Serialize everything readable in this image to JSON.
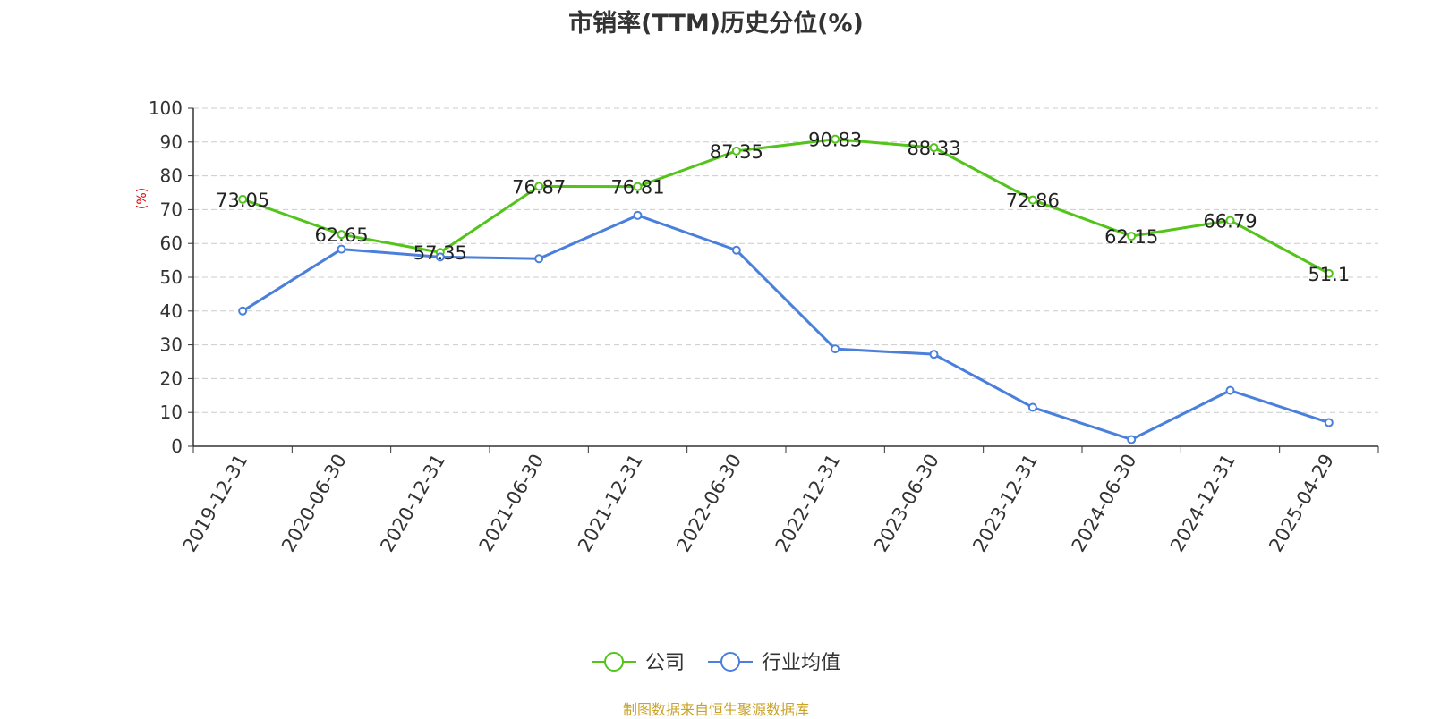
{
  "chart_data": {
    "type": "line",
    "title": "市销率(TTM)历史分位(%)",
    "ylabel": "(%)",
    "xlabel": "",
    "ylim": [
      0,
      100
    ],
    "yticks": [
      0,
      10,
      20,
      30,
      40,
      50,
      60,
      70,
      80,
      90,
      100
    ],
    "grid": true,
    "legend_position": "bottom",
    "categories": [
      "2019-12-31",
      "2020-06-30",
      "2020-12-31",
      "2021-06-30",
      "2021-12-31",
      "2022-06-30",
      "2022-12-31",
      "2023-06-30",
      "2023-12-31",
      "2024-06-30",
      "2024-12-31",
      "2025-04-29"
    ],
    "series": [
      {
        "name": "公司",
        "color": "#52c41a",
        "values": [
          73.05,
          62.65,
          57.35,
          76.87,
          76.81,
          87.35,
          90.83,
          88.33,
          72.86,
          62.15,
          66.79,
          51.1
        ],
        "labels": [
          "73.05",
          "62.65",
          "57.35",
          "76.87",
          "76.81",
          "87.35",
          "90.83",
          "88.33",
          "72.86",
          "62.15",
          "66.79",
          "51.1"
        ]
      },
      {
        "name": "行业均值",
        "color": "#4a7fdb",
        "values": [
          40,
          58.3,
          56,
          55.5,
          68.3,
          58,
          28.8,
          27.2,
          11.5,
          2,
          16.5,
          7
        ]
      }
    ]
  },
  "footer": {
    "source": "制图数据来自恒生聚源数据库"
  }
}
